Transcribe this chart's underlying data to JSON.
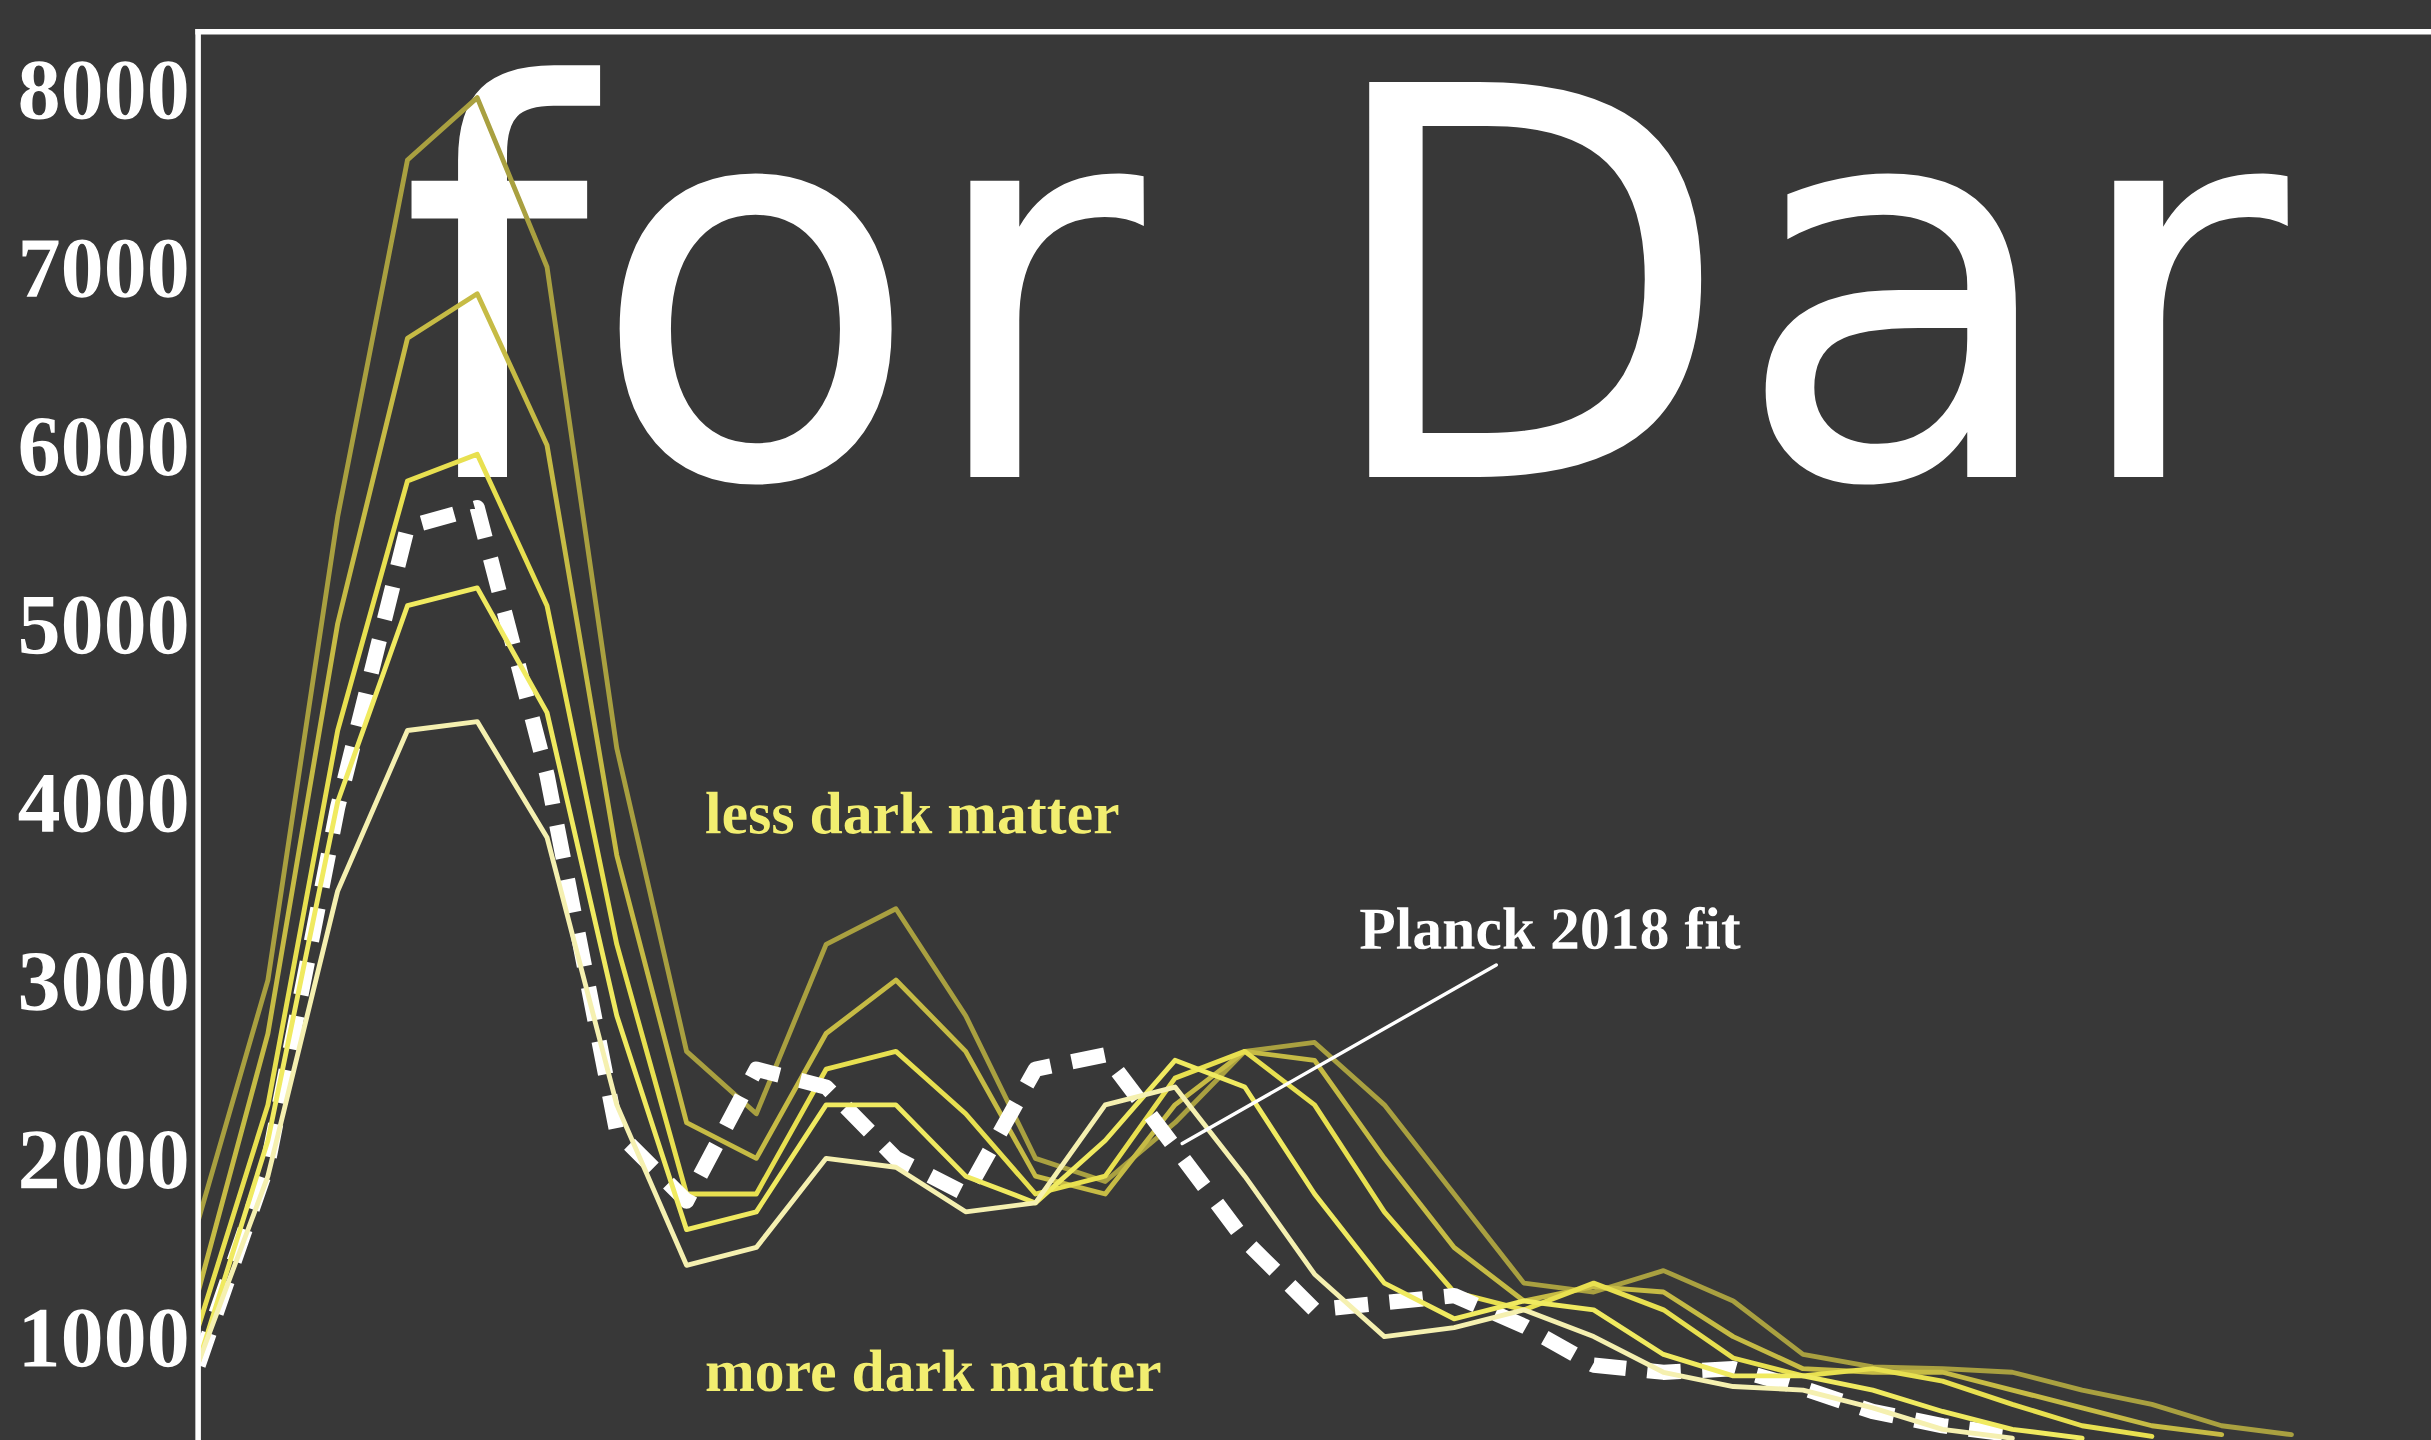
{
  "chart_data": {
    "type": "line",
    "title": "for Dar",
    "categories": [
      null,
      null,
      null,
      null,
      null,
      null,
      null,
      null,
      null,
      null,
      null,
      null,
      null,
      null,
      null,
      null,
      null,
      null,
      null,
      null,
      null,
      null,
      null,
      null,
      null,
      null,
      null,
      null,
      null,
      null,
      null,
      null,
      null
    ],
    "series": [
      {
        "color": "#a9a040",
        "line_style": "solid",
        "values": [
          1650,
          3000,
          5600,
          7600,
          7950,
          7000,
          4300,
          2600,
          2250,
          3200,
          3400,
          2800,
          2000,
          1870,
          2200,
          2600,
          2650,
          2300,
          1800,
          1300,
          1250,
          1370,
          1200,
          900,
          830,
          820,
          800,
          700,
          620,
          500,
          450,
          null,
          null
        ]
      },
      {
        "color": "#c6bb45",
        "line_style": "solid",
        "values": [
          1250,
          2700,
          5000,
          6600,
          6850,
          6000,
          3700,
          2200,
          2000,
          2700,
          3000,
          2600,
          1900,
          1800,
          2300,
          2600,
          2550,
          2000,
          1500,
          1200,
          1280,
          1250,
          1000,
          820,
          800,
          800,
          700,
          600,
          500,
          450,
          null,
          null,
          null
        ]
      },
      {
        "color": "#e8e050",
        "line_style": "solid",
        "values": [
          1050,
          2300,
          4400,
          5800,
          5950,
          5100,
          3200,
          1800,
          1800,
          2500,
          2600,
          2250,
          1800,
          1900,
          2450,
          2600,
          2300,
          1700,
          1250,
          1150,
          1300,
          1150,
          880,
          780,
          820,
          750,
          620,
          500,
          440,
          null,
          null,
          null,
          null
        ]
      },
      {
        "name": "Planck 2018 fit",
        "color": "#ffffff",
        "line_style": "dashed",
        "values": [
          840,
          1970,
          3970,
          5540,
          5650,
          4150,
          2150,
          1760,
          2500,
          2400,
          2000,
          1800,
          2500,
          2580,
          2060,
          1540,
          1150,
          1190,
          1230,
          1060,
          840,
          800,
          820,
          710,
          580,
          500,
          450,
          null,
          null,
          null,
          null,
          null,
          null
        ]
      },
      {
        "color": "#f0ea60",
        "line_style": "solid",
        "values": [
          850,
          2100,
          4000,
          5100,
          5200,
          4500,
          2800,
          1600,
          1700,
          2300,
          2300,
          1900,
          1750,
          2100,
          2550,
          2400,
          1800,
          1300,
          1100,
          1200,
          1150,
          900,
          780,
          780,
          700,
          580,
          480,
          430,
          null,
          null,
          null,
          null,
          null
        ]
      },
      {
        "color": "#f5f0b0",
        "line_style": "solid",
        "values": [
          850,
          1900,
          3500,
          4400,
          4450,
          3800,
          2300,
          1400,
          1500,
          2000,
          1950,
          1700,
          1750,
          2300,
          2400,
          1900,
          1350,
          1000,
          1050,
          1150,
          1000,
          800,
          720,
          700,
          600,
          480,
          430,
          null,
          null,
          null,
          null,
          null,
          null
        ]
      }
    ],
    "ylim": [
      420,
      8320
    ],
    "yticks": [
      1000,
      2000,
      3000,
      4000,
      5000,
      6000,
      7000,
      8000
    ],
    "annotations": [
      "less dark matter",
      "more dark matter"
    ],
    "grid": false,
    "legend": false,
    "tick_labels": "y"
  }
}
